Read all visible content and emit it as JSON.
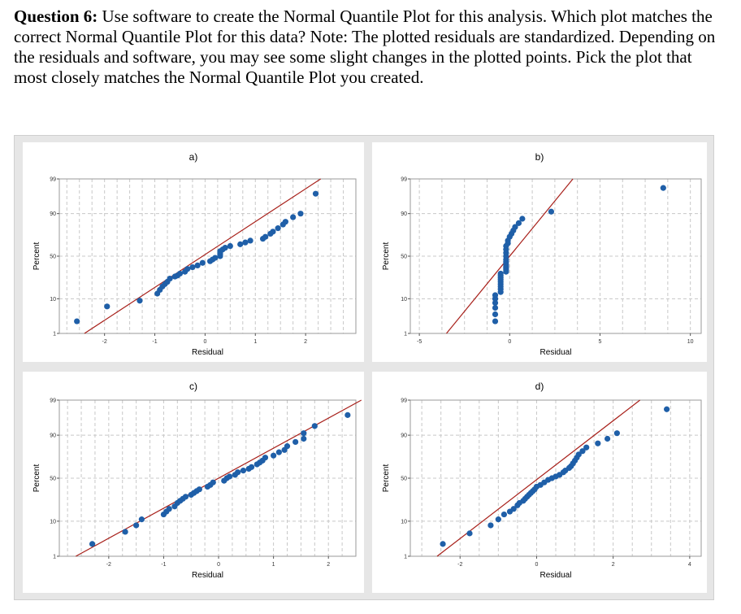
{
  "question": {
    "label": "Question 6:",
    "text": "Use software to create the Normal Quantile Plot for this analysis. Which plot matches the correct Normal Quantile Plot for this data? Note: The plotted residuals are standardized. Depending on the residuals and software, you may see some slight changes in the plotted points. Pick the plot that most closely matches the Normal Quantile Plot you created."
  },
  "colors": {
    "points": "#1f5fa8",
    "fit_line": "#a8201a",
    "grid": "#c8c8c8",
    "panel_bg": "#e6e6e6"
  },
  "chart_data": [
    {
      "type": "scatter",
      "title": "a)",
      "xlabel": "Residual",
      "ylabel": "Percent",
      "xlim": [
        -2.9,
        3.0
      ],
      "x_ticks": [
        -2,
        -1,
        0,
        1,
        2
      ],
      "x_tick_labels": [
        "-2",
        "-1",
        "0",
        "1",
        "2"
      ],
      "y_ticks": [
        1,
        10,
        50,
        90,
        99
      ],
      "y_tick_labels": [
        "1",
        "10",
        "50",
        "90",
        "99"
      ],
      "fit_line": {
        "x": [
          -2.4,
          2.3
        ],
        "percent": [
          1,
          99
        ]
      },
      "points": [
        [
          -2.55,
          2.5
        ],
        [
          -1.95,
          6.5
        ],
        [
          -1.3,
          9
        ],
        [
          -0.95,
          13
        ],
        [
          -0.9,
          15.5
        ],
        [
          -0.85,
          18
        ],
        [
          -0.8,
          20
        ],
        [
          -0.75,
          22
        ],
        [
          -0.7,
          25
        ],
        [
          -0.6,
          27
        ],
        [
          -0.55,
          28
        ],
        [
          -0.5,
          30
        ],
        [
          -0.4,
          32
        ],
        [
          -0.35,
          35
        ],
        [
          -0.25,
          37
        ],
        [
          -0.15,
          39
        ],
        [
          -0.05,
          42
        ],
        [
          0.1,
          44
        ],
        [
          0.15,
          46
        ],
        [
          0.2,
          48
        ],
        [
          0.3,
          50
        ],
        [
          0.3,
          52
        ],
        [
          0.3,
          54
        ],
        [
          0.3,
          56
        ],
        [
          0.35,
          58
        ],
        [
          0.4,
          60
        ],
        [
          0.5,
          62
        ],
        [
          0.7,
          64
        ],
        [
          0.8,
          66
        ],
        [
          0.9,
          68
        ],
        [
          1.15,
          70
        ],
        [
          1.2,
          72
        ],
        [
          1.3,
          75
        ],
        [
          1.35,
          77
        ],
        [
          1.45,
          80
        ],
        [
          1.55,
          83
        ],
        [
          1.6,
          85
        ],
        [
          1.75,
          88
        ],
        [
          1.9,
          90
        ],
        [
          2.2,
          97
        ]
      ]
    },
    {
      "type": "scatter",
      "title": "b)",
      "xlabel": "Residual",
      "ylabel": "Percent",
      "xlim": [
        -5.5,
        10.6
      ],
      "x_ticks": [
        -5,
        0,
        5,
        10
      ],
      "x_tick_labels": [
        "-5",
        "0",
        "5",
        "10"
      ],
      "y_ticks": [
        1,
        10,
        50,
        90,
        99
      ],
      "y_tick_labels": [
        "1",
        "10",
        "50",
        "90",
        "99"
      ],
      "fit_line": {
        "x": [
          -3.5,
          3.5
        ],
        "percent": [
          1,
          99
        ]
      },
      "points": [
        [
          -0.8,
          2.5
        ],
        [
          -0.8,
          4
        ],
        [
          -0.8,
          6
        ],
        [
          -0.8,
          8
        ],
        [
          -0.8,
          10
        ],
        [
          -0.8,
          12
        ],
        [
          -0.5,
          14
        ],
        [
          -0.5,
          16
        ],
        [
          -0.5,
          18
        ],
        [
          -0.5,
          20
        ],
        [
          -0.5,
          22
        ],
        [
          -0.5,
          24
        ],
        [
          -0.5,
          26
        ],
        [
          -0.5,
          28
        ],
        [
          -0.5,
          30
        ],
        [
          -0.2,
          32
        ],
        [
          -0.2,
          34
        ],
        [
          -0.2,
          36
        ],
        [
          -0.2,
          38
        ],
        [
          -0.2,
          40
        ],
        [
          -0.2,
          43
        ],
        [
          -0.2,
          46
        ],
        [
          -0.2,
          50
        ],
        [
          -0.2,
          54
        ],
        [
          -0.2,
          58
        ],
        [
          -0.2,
          62
        ],
        [
          -0.1,
          65
        ],
        [
          -0.1,
          68
        ],
        [
          0,
          72
        ],
        [
          0.1,
          75
        ],
        [
          0.2,
          78
        ],
        [
          0.3,
          81
        ],
        [
          0.5,
          84
        ],
        [
          0.7,
          87
        ],
        [
          2.3,
          91
        ],
        [
          8.5,
          98
        ]
      ]
    },
    {
      "type": "scatter",
      "title": "c)",
      "xlabel": "Residual",
      "ylabel": "Percent",
      "xlim": [
        -2.9,
        2.5
      ],
      "x_ticks": [
        -2,
        -1,
        0,
        1,
        2
      ],
      "x_tick_labels": [
        "-2",
        "-1",
        "0",
        "1",
        "2"
      ],
      "y_ticks": [
        1,
        10,
        50,
        90,
        99
      ],
      "y_tick_labels": [
        "1",
        "10",
        "50",
        "90",
        "99"
      ],
      "fit_line": {
        "x": [
          -2.6,
          2.6
        ],
        "percent": [
          1,
          99
        ]
      },
      "points": [
        [
          -2.3,
          2.5
        ],
        [
          -1.7,
          5.5
        ],
        [
          -1.5,
          8
        ],
        [
          -1.4,
          11
        ],
        [
          -1.0,
          14
        ],
        [
          -0.95,
          16
        ],
        [
          -0.9,
          18
        ],
        [
          -0.8,
          20
        ],
        [
          -0.75,
          23
        ],
        [
          -0.7,
          25
        ],
        [
          -0.65,
          27
        ],
        [
          -0.6,
          29
        ],
        [
          -0.5,
          31
        ],
        [
          -0.45,
          33
        ],
        [
          -0.4,
          35
        ],
        [
          -0.35,
          37
        ],
        [
          -0.2,
          40
        ],
        [
          -0.15,
          42
        ],
        [
          -0.1,
          45
        ],
        [
          0.1,
          47
        ],
        [
          0.15,
          50
        ],
        [
          0.2,
          52
        ],
        [
          0.3,
          54
        ],
        [
          0.35,
          57
        ],
        [
          0.45,
          59
        ],
        [
          0.55,
          61
        ],
        [
          0.6,
          63
        ],
        [
          0.7,
          66
        ],
        [
          0.75,
          68
        ],
        [
          0.8,
          70
        ],
        [
          0.85,
          73
        ],
        [
          1.0,
          75
        ],
        [
          1.1,
          78
        ],
        [
          1.2,
          80
        ],
        [
          1.25,
          83
        ],
        [
          1.4,
          86
        ],
        [
          1.55,
          88
        ],
        [
          1.55,
          91
        ],
        [
          1.75,
          94
        ],
        [
          2.35,
          97
        ]
      ]
    },
    {
      "type": "scatter",
      "title": "d)",
      "xlabel": "Residual",
      "ylabel": "Percent",
      "xlim": [
        -3.3,
        4.3
      ],
      "x_ticks": [
        -2,
        0,
        2,
        4
      ],
      "x_tick_labels": [
        "-2",
        "0",
        "2",
        "4"
      ],
      "y_ticks": [
        1,
        10,
        50,
        90,
        99
      ],
      "y_tick_labels": [
        "1",
        "10",
        "50",
        "90",
        "99"
      ],
      "fit_line": {
        "x": [
          -2.6,
          2.7
        ],
        "percent": [
          1,
          99
        ]
      },
      "points": [
        [
          -2.45,
          2.5
        ],
        [
          -1.75,
          5
        ],
        [
          -1.2,
          8
        ],
        [
          -1.0,
          11
        ],
        [
          -0.85,
          14
        ],
        [
          -0.7,
          16
        ],
        [
          -0.6,
          18
        ],
        [
          -0.5,
          21
        ],
        [
          -0.45,
          23
        ],
        [
          -0.35,
          25
        ],
        [
          -0.3,
          27
        ],
        [
          -0.25,
          29
        ],
        [
          -0.2,
          31
        ],
        [
          -0.15,
          33
        ],
        [
          -0.1,
          35
        ],
        [
          -0.05,
          37
        ],
        [
          0.0,
          40
        ],
        [
          0.1,
          42
        ],
        [
          0.2,
          45
        ],
        [
          0.3,
          48
        ],
        [
          0.4,
          50
        ],
        [
          0.5,
          52
        ],
        [
          0.6,
          54
        ],
        [
          0.7,
          57
        ],
        [
          0.75,
          59
        ],
        [
          0.85,
          62
        ],
        [
          0.9,
          64
        ],
        [
          0.95,
          67
        ],
        [
          1.0,
          70
        ],
        [
          1.05,
          73
        ],
        [
          1.1,
          76
        ],
        [
          1.2,
          79
        ],
        [
          1.3,
          82
        ],
        [
          1.6,
          85
        ],
        [
          1.85,
          88
        ],
        [
          2.1,
          91
        ],
        [
          3.4,
          98
        ]
      ]
    }
  ]
}
